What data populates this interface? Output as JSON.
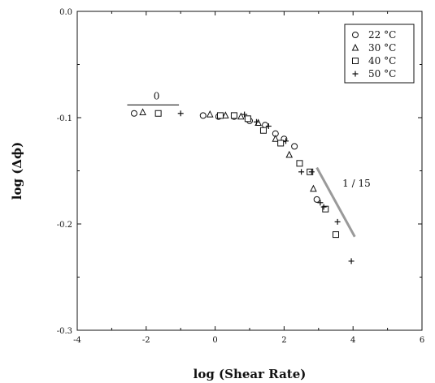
{
  "chart_data": {
    "type": "scatter",
    "xlabel": "log (Shear Rate)",
    "ylabel": "log (Δϕ)",
    "xlim": [
      -4,
      6
    ],
    "ylim": [
      -0.3,
      0.0
    ],
    "xticks": [
      -4,
      -2,
      0,
      2,
      4,
      6
    ],
    "yticks": [
      0.0,
      -0.1,
      -0.2,
      -0.3
    ],
    "xtick_labels": [
      "-4",
      "-2",
      "0",
      "2",
      "4",
      "6"
    ],
    "ytick_labels": [
      "0.0",
      "-0.1",
      "-0.2",
      "-0.3"
    ],
    "grid": false,
    "legend_position": "top-right",
    "series": [
      {
        "name": "22 °C",
        "marker": "circle",
        "points": [
          [
            -2.35,
            -0.096
          ],
          [
            -0.35,
            -0.098
          ],
          [
            0.1,
            -0.099
          ],
          [
            0.55,
            -0.099
          ],
          [
            1.0,
            -0.103
          ],
          [
            1.45,
            -0.107
          ],
          [
            1.75,
            -0.115
          ],
          [
            2.0,
            -0.12
          ],
          [
            2.3,
            -0.127
          ],
          [
            2.95,
            -0.177
          ]
        ]
      },
      {
        "name": "30 °C",
        "marker": "triangle",
        "points": [
          [
            -2.1,
            -0.095
          ],
          [
            -0.15,
            -0.097
          ],
          [
            0.3,
            -0.098
          ],
          [
            0.75,
            -0.099
          ],
          [
            1.25,
            -0.105
          ],
          [
            1.75,
            -0.12
          ],
          [
            2.15,
            -0.135
          ],
          [
            2.85,
            -0.167
          ]
        ]
      },
      {
        "name": "40 °C",
        "marker": "square",
        "points": [
          [
            -1.65,
            -0.096
          ],
          [
            0.15,
            -0.098
          ],
          [
            0.55,
            -0.098
          ],
          [
            0.95,
            -0.101
          ],
          [
            1.4,
            -0.112
          ],
          [
            1.9,
            -0.124
          ],
          [
            2.45,
            -0.143
          ],
          [
            2.75,
            -0.151
          ],
          [
            3.2,
            -0.186
          ],
          [
            3.5,
            -0.21
          ]
        ]
      },
      {
        "name": "50 °C",
        "marker": "plus",
        "points": [
          [
            -1.0,
            -0.096
          ],
          [
            0.85,
            -0.097
          ],
          [
            1.2,
            -0.104
          ],
          [
            1.55,
            -0.108
          ],
          [
            2.05,
            -0.122
          ],
          [
            2.5,
            -0.151
          ],
          [
            2.8,
            -0.151
          ],
          [
            3.05,
            -0.18
          ],
          [
            3.15,
            -0.184
          ],
          [
            3.55,
            -0.198
          ],
          [
            3.95,
            -0.235
          ]
        ]
      }
    ],
    "annotations": [
      {
        "text": "0",
        "x": -1.7,
        "y": -0.083
      },
      {
        "text": "1 / 15",
        "x": 4.1,
        "y": -0.165
      }
    ],
    "guide_lines": [
      {
        "from": [
          -2.55,
          -0.088
        ],
        "to": [
          -1.05,
          -0.088
        ],
        "shade": "#000000"
      },
      {
        "from": [
          2.95,
          -0.147
        ],
        "to": [
          4.05,
          -0.212
        ],
        "shade": "#9a9a9a"
      }
    ]
  }
}
